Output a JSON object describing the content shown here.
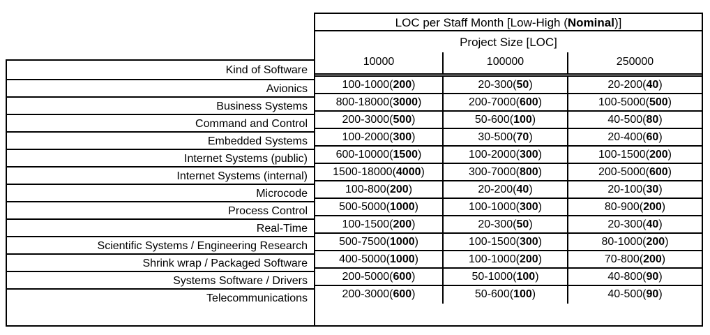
{
  "colors": {
    "border": "#000000",
    "background": "#ffffff",
    "text": "#000000"
  },
  "table": {
    "title_prefix": "LOC per Staff Month [Low-High (",
    "title_bold": "Nominal",
    "title_suffix": ")]",
    "subheader": "Project Size [LOC]",
    "kind_header": "Kind of Software",
    "size_columns": [
      "10000",
      "100000",
      "250000"
    ],
    "rows": [
      {
        "label": "Avionics",
        "cells": [
          {
            "range": "100-1000",
            "nominal": "200"
          },
          {
            "range": "20-300",
            "nominal": "50"
          },
          {
            "range": "20-200",
            "nominal": "40"
          }
        ]
      },
      {
        "label": "Business Systems",
        "cells": [
          {
            "range": "800-18000",
            "nominal": "3000"
          },
          {
            "range": "200-7000",
            "nominal": "600"
          },
          {
            "range": "100-5000",
            "nominal": "500"
          }
        ]
      },
      {
        "label": "Command and Control",
        "cells": [
          {
            "range": "200-3000",
            "nominal": "500"
          },
          {
            "range": "50-600",
            "nominal": "100"
          },
          {
            "range": "40-500",
            "nominal": "80"
          }
        ]
      },
      {
        "label": "Embedded Systems",
        "cells": [
          {
            "range": "100-2000",
            "nominal": "300"
          },
          {
            "range": "30-500",
            "nominal": "70"
          },
          {
            "range": "20-400",
            "nominal": "60"
          }
        ]
      },
      {
        "label": "Internet Systems (public)",
        "cells": [
          {
            "range": "600-10000",
            "nominal": "1500"
          },
          {
            "range": "100-2000",
            "nominal": "300"
          },
          {
            "range": "100-1500",
            "nominal": "200"
          }
        ]
      },
      {
        "label": "Internet Systems (internal)",
        "cells": [
          {
            "range": "1500-18000",
            "nominal": "4000"
          },
          {
            "range": "300-7000",
            "nominal": "800"
          },
          {
            "range": "200-5000",
            "nominal": "600"
          }
        ]
      },
      {
        "label": "Microcode",
        "cells": [
          {
            "range": "100-800",
            "nominal": "200"
          },
          {
            "range": "20-200",
            "nominal": "40"
          },
          {
            "range": "20-100",
            "nominal": "30"
          }
        ]
      },
      {
        "label": "Process Control",
        "cells": [
          {
            "range": "500-5000",
            "nominal": "1000"
          },
          {
            "range": "100-1000",
            "nominal": "300"
          },
          {
            "range": "80-900",
            "nominal": "200"
          }
        ]
      },
      {
        "label": "Real-Time",
        "cells": [
          {
            "range": "100-1500",
            "nominal": "200"
          },
          {
            "range": "20-300",
            "nominal": "50"
          },
          {
            "range": "20-300",
            "nominal": "40"
          }
        ]
      },
      {
        "label": "Scientific Systems / Engineering Research",
        "cells": [
          {
            "range": "500-7500",
            "nominal": "1000"
          },
          {
            "range": "100-1500",
            "nominal": "300"
          },
          {
            "range": "80-1000",
            "nominal": "200"
          }
        ]
      },
      {
        "label": "Shrink wrap / Packaged Software",
        "cells": [
          {
            "range": "400-5000",
            "nominal": "1000"
          },
          {
            "range": "100-1000",
            "nominal": "200"
          },
          {
            "range": "70-800",
            "nominal": "200"
          }
        ]
      },
      {
        "label": "Systems Software / Drivers",
        "cells": [
          {
            "range": "200-5000",
            "nominal": "600"
          },
          {
            "range": "50-1000",
            "nominal": "100"
          },
          {
            "range": "40-800",
            "nominal": "90"
          }
        ]
      },
      {
        "label": "Telecommunications",
        "cells": [
          {
            "range": "200-3000",
            "nominal": "600"
          },
          {
            "range": "50-600",
            "nominal": "100"
          },
          {
            "range": "40-500",
            "nominal": "90"
          }
        ]
      }
    ]
  }
}
